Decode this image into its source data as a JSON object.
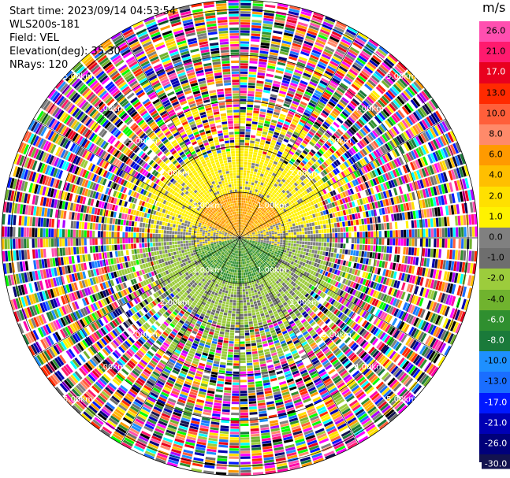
{
  "header": {
    "start_time": "Start time: 2023/09/14 04:53:54",
    "instrument": "WLS200s-181",
    "field": "Field: VEL",
    "elevation": "Elevation(deg): 35.30",
    "nrays": "NRays: 120"
  },
  "colorbar": {
    "unit": "m/s",
    "ticks": [
      "26.0",
      "21.0",
      "17.0",
      "13.0",
      "10.0",
      "8.0",
      "6.0",
      "4.0",
      "2.0",
      "1.0",
      "0.0",
      "-1.0",
      "-2.0",
      "-4.0",
      "-6.0",
      "-8.0",
      "-10.0",
      "-13.0",
      "-17.0",
      "-21.0",
      "-26.0",
      "-30.0"
    ],
    "colors": [
      "#ff4fb0",
      "#ff1a6e",
      "#e8001e",
      "#ff2a00",
      "#ff5f3a",
      "#ff8a6a",
      "#ff9a00",
      "#ffbf00",
      "#ffe000",
      "#fff200",
      "#808080",
      "#6e6e6e",
      "#9ccc3c",
      "#70b32e",
      "#2f8f2f",
      "#1a7a3a",
      "#1e90ff",
      "#1a6eff",
      "#0018ff",
      "#0000b4",
      "#00007a",
      "#12124f"
    ]
  },
  "chart_data": {
    "type": "heatmap",
    "subtype": "polar-ppi",
    "field": "VEL",
    "units": "m/s",
    "nrays": 120,
    "vmin": -30.0,
    "vmax": 26.0,
    "range_ring_labels": [
      "1.00km",
      "2.00km",
      "3.00km",
      "4.00km",
      "5.00km"
    ],
    "range_ring_km": [
      1,
      2,
      3,
      4,
      5
    ],
    "spokes_deg": [
      0,
      30,
      60,
      90,
      120,
      150,
      180,
      210,
      240,
      270,
      300,
      330
    ],
    "regions": [
      {
        "range_km": [
          0,
          1.0
        ],
        "description": "0 to 2 m/s (orange/yellow) north, -2 to -6 m/s (green) south"
      },
      {
        "range_km": [
          1.0,
          2.2
        ],
        "description": "1 to 2 m/s (yellow) north, -1 to -2 m/s (olive) south, gray near zero"
      },
      {
        "range_km": [
          2.2,
          5.9
        ],
        "description": "noise: all colors random"
      }
    ]
  }
}
